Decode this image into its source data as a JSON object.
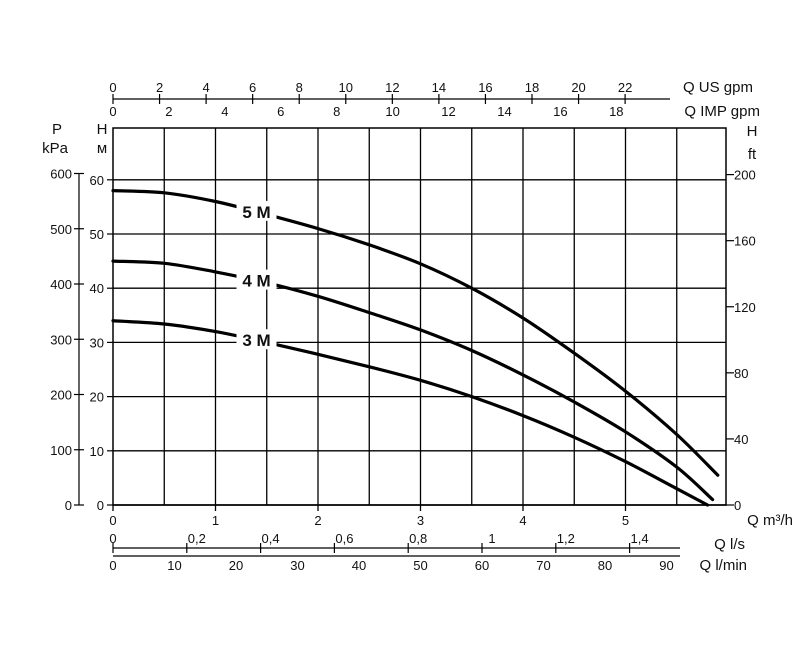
{
  "chart_data": {
    "type": "line",
    "title": "",
    "grid": true,
    "x_axes": {
      "q_us_gpm": {
        "label": "Q US gpm",
        "ticks": [
          "0",
          "2",
          "4",
          "6",
          "8",
          "10",
          "12",
          "14",
          "16",
          "18",
          "20",
          "22"
        ]
      },
      "q_imp_gpm": {
        "label": "Q IMP gpm",
        "ticks": [
          "0",
          "2",
          "4",
          "6",
          "8",
          "10",
          "12",
          "14",
          "16",
          "18"
        ]
      },
      "q_m3h": {
        "label": "Q m³/h",
        "ticks": [
          "0",
          "1",
          "2",
          "3",
          "4",
          "5"
        ],
        "range": [
          0,
          5.9
        ]
      },
      "q_ls": {
        "label": "Q l/s",
        "ticks": [
          "0",
          "0,2",
          "0,4",
          "0,6",
          "0,8",
          "1",
          "1,2",
          "1,4"
        ]
      },
      "q_lmin": {
        "label": "Q l/min",
        "ticks": [
          "0",
          "10",
          "20",
          "30",
          "40",
          "50",
          "60",
          "70",
          "80",
          "90"
        ]
      }
    },
    "y_axes": {
      "p_kpa": {
        "label_line1": "P",
        "label_line2": "kPa",
        "ticks": [
          "0",
          "100",
          "200",
          "300",
          "400",
          "500",
          "600"
        ]
      },
      "h_m": {
        "label_line1": "H",
        "label_line2": "м",
        "ticks": [
          "0",
          "10",
          "20",
          "30",
          "40",
          "50",
          "60"
        ],
        "range": [
          0,
          60
        ]
      },
      "h_ft": {
        "label_line1": "H",
        "label_line2": "ft",
        "ticks": [
          "0",
          "40",
          "80",
          "120",
          "160",
          "200"
        ]
      }
    },
    "series": [
      {
        "name": "5 M",
        "x": [
          0,
          0.5,
          1.0,
          1.5,
          2.0,
          2.5,
          3.0,
          3.5,
          4.0,
          4.5,
          5.0,
          5.5,
          5.9
        ],
        "y": [
          58,
          57.6,
          56,
          53.6,
          51,
          48,
          44.5,
          40,
          34.5,
          28,
          21,
          13,
          5.5
        ]
      },
      {
        "name": "4 M",
        "x": [
          0,
          0.5,
          1.0,
          1.5,
          2.0,
          2.5,
          3.0,
          3.5,
          4.0,
          4.5,
          5.0,
          5.5,
          5.85
        ],
        "y": [
          45,
          44.6,
          43,
          41,
          38.5,
          35.5,
          32.3,
          28.5,
          24,
          19,
          13.5,
          7,
          1
        ]
      },
      {
        "name": "3 M",
        "x": [
          0,
          0.5,
          1.0,
          1.5,
          2.0,
          2.5,
          3.0,
          3.5,
          4.0,
          4.5,
          5.0,
          5.5,
          5.8
        ],
        "y": [
          34,
          33.4,
          32,
          30,
          27.8,
          25.5,
          23,
          20,
          16.5,
          12.5,
          8,
          3,
          0
        ]
      }
    ]
  }
}
